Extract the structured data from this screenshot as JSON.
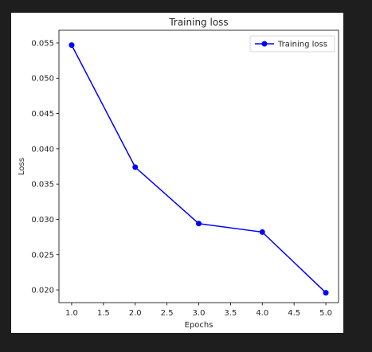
{
  "chart_data": {
    "type": "line",
    "title": "Training loss",
    "xlabel": "Epochs",
    "ylabel": "Loss",
    "xlim": [
      0.8,
      5.2
    ],
    "ylim": [
      0.0182,
      0.0568
    ],
    "xticks": [
      1.0,
      1.5,
      2.0,
      2.5,
      3.0,
      3.5,
      4.0,
      4.5,
      5.0
    ],
    "xtick_labels": [
      "1.0",
      "1.5",
      "2.0",
      "2.5",
      "3.0",
      "3.5",
      "4.0",
      "4.5",
      "5.0"
    ],
    "yticks": [
      0.02,
      0.025,
      0.03,
      0.035,
      0.04,
      0.045,
      0.05,
      0.055
    ],
    "ytick_labels": [
      "0.020",
      "0.025",
      "0.030",
      "0.035",
      "0.040",
      "0.045",
      "0.050",
      "0.055"
    ],
    "grid": false,
    "legend_position": "top-right",
    "series": [
      {
        "name": "Training loss",
        "color": "#0000ff",
        "marker": "circle",
        "x": [
          1,
          2,
          3,
          4,
          5
        ],
        "y": [
          0.0547,
          0.0374,
          0.0294,
          0.0282,
          0.0196
        ]
      }
    ]
  }
}
